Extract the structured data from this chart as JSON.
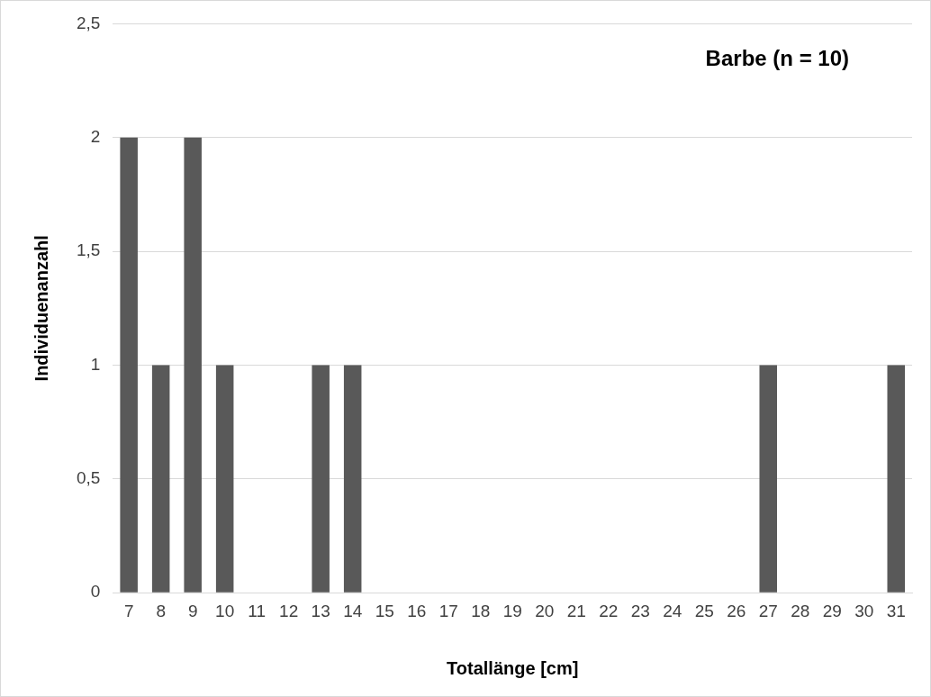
{
  "chart_data": {
    "type": "bar",
    "title": "Barbe (n = 10)",
    "xlabel": "Totallänge [cm]",
    "ylabel": "Individuenanzahl",
    "categories": [
      "7",
      "8",
      "9",
      "10",
      "11",
      "12",
      "13",
      "14",
      "15",
      "16",
      "17",
      "18",
      "19",
      "20",
      "21",
      "22",
      "23",
      "24",
      "25",
      "26",
      "27",
      "28",
      "29",
      "30",
      "31"
    ],
    "values": [
      2,
      1,
      2,
      1,
      0,
      0,
      1,
      1,
      0,
      0,
      0,
      0,
      0,
      0,
      0,
      0,
      0,
      0,
      0,
      0,
      1,
      0,
      0,
      0,
      1
    ],
    "color": "#595959",
    "ylim": [
      0,
      2.5
    ],
    "yticks": [
      0,
      {
        "value": 0.5,
        "label": "0,5"
      },
      1,
      {
        "value": 1.5,
        "label": "1,5"
      },
      2,
      {
        "value": 2.5,
        "label": "2,5"
      }
    ],
    "grid": "y",
    "legend": false
  }
}
